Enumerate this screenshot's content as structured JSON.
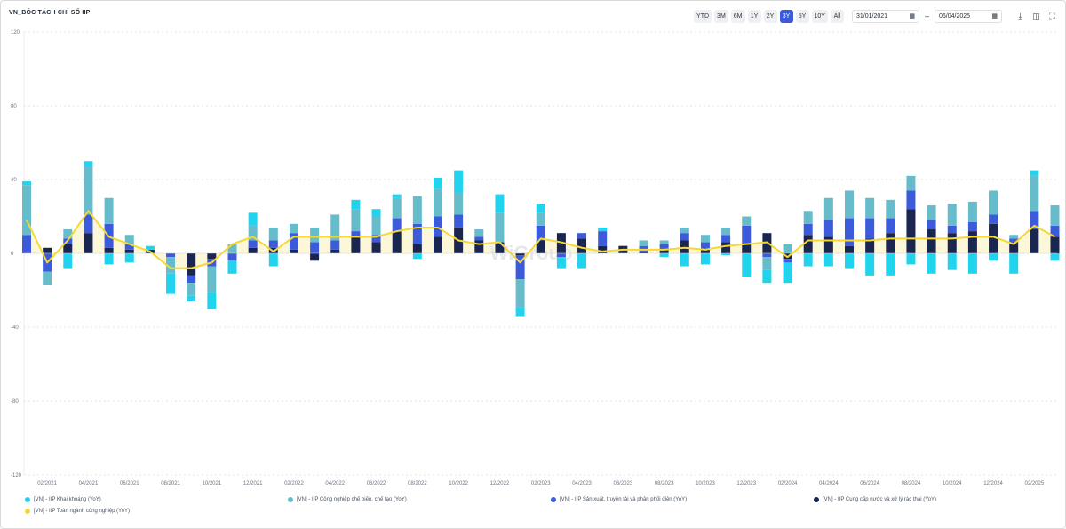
{
  "title": "VN_BÓC TÁCH CHỈ SỐ IIP",
  "toolbar": {
    "ranges": [
      "YTD",
      "3M",
      "6M",
      "1Y",
      "2Y",
      "3Y",
      "5Y",
      "10Y",
      "All"
    ],
    "active_range": "3Y",
    "date_from": "31/01/2021",
    "date_to": "06/04/2025",
    "separator": "–",
    "calendar_icon": "calendar-icon",
    "download_icon": "download-icon",
    "table_icon": "table-icon",
    "fullscreen_icon": "fullscreen-icon"
  },
  "watermark": "WiGroup",
  "colors": {
    "mining": "#22d3ee",
    "manufacturing": "#67bccc",
    "electricity": "#3b5bdb",
    "water": "#1a2550",
    "total": "#f5d833",
    "area": "#fdf6d3",
    "active": "#3b5bdb"
  },
  "chart_data": {
    "type": "bar",
    "stacked": true,
    "ylim": [
      -120,
      120
    ],
    "yticks": [
      -120,
      -80,
      -40,
      0,
      40,
      80,
      120
    ],
    "grid": true,
    "legend_position": "bottom",
    "xtick_labels": [
      "02/2021",
      "04/2021",
      "06/2021",
      "08/2021",
      "10/2021",
      "12/2021",
      "02/2022",
      "04/2022",
      "06/2022",
      "08/2022",
      "10/2022",
      "12/2022",
      "02/2023",
      "04/2023",
      "06/2023",
      "08/2023",
      "10/2023",
      "12/2023",
      "02/2024",
      "04/2024",
      "06/2024",
      "08/2024",
      "10/2024",
      "12/2024",
      "02/2025"
    ],
    "categories": [
      "01/2021",
      "02/2021",
      "03/2021",
      "04/2021",
      "05/2021",
      "06/2021",
      "07/2021",
      "08/2021",
      "09/2021",
      "10/2021",
      "11/2021",
      "12/2021",
      "01/2022",
      "02/2022",
      "03/2022",
      "04/2022",
      "05/2022",
      "06/2022",
      "07/2022",
      "08/2022",
      "09/2022",
      "10/2022",
      "11/2022",
      "12/2022",
      "01/2023",
      "02/2023",
      "03/2023",
      "04/2023",
      "05/2023",
      "06/2023",
      "07/2023",
      "08/2023",
      "09/2023",
      "10/2023",
      "11/2023",
      "12/2023",
      "01/2024",
      "02/2024",
      "03/2024",
      "04/2024",
      "05/2024",
      "06/2024",
      "07/2024",
      "08/2024",
      "09/2024",
      "10/2024",
      "11/2024",
      "12/2024",
      "01/2025",
      "02/2025",
      "03/2025"
    ],
    "series": [
      {
        "name": "[VN] - IIP Khai khoáng (YoY)",
        "color": "#22d3ee",
        "values": [
          2,
          0,
          -8,
          3,
          -6,
          -5,
          2,
          -11,
          -3,
          -9,
          -7,
          7,
          -7,
          0,
          0,
          0,
          5,
          4,
          2,
          -3,
          6,
          12,
          0,
          10,
          -5,
          5,
          -6,
          -8,
          2,
          0,
          0,
          -2,
          -7,
          -6,
          -1,
          -13,
          -7,
          -11,
          -7,
          -7,
          -8,
          -12,
          -12,
          -6,
          -11,
          -9,
          -11,
          -4,
          -11,
          3,
          -4
        ]
      },
      {
        "name": "[VN] - IIP Công nghiệp chế biến, chế tạo (YoY)",
        "color": "#67bccc",
        "values": [
          27,
          -7,
          5,
          26,
          14,
          5,
          0,
          -9,
          -7,
          -14,
          5,
          8,
          7,
          5,
          8,
          14,
          12,
          10,
          11,
          15,
          15,
          12,
          4,
          16,
          -15,
          7,
          0,
          0,
          0,
          0,
          3,
          2,
          3,
          4,
          4,
          5,
          -7,
          5,
          7,
          12,
          15,
          11,
          10,
          8,
          8,
          12,
          11,
          13,
          2,
          19,
          11
        ]
      },
      {
        "name": "[VN] - IIP Sản xuất, truyền tải và phân phối điện (YoY)",
        "color": "#3b5bdb",
        "values": [
          10,
          -10,
          3,
          10,
          13,
          3,
          0,
          -2,
          -4,
          -4,
          -4,
          4,
          4,
          9,
          6,
          5,
          3,
          4,
          7,
          11,
          11,
          7,
          2,
          0,
          -13,
          8,
          -2,
          3,
          8,
          0,
          3,
          3,
          4,
          4,
          4,
          10,
          -2,
          -2,
          6,
          9,
          15,
          11,
          8,
          10,
          5,
          4,
          5,
          5,
          2,
          10,
          6
        ]
      },
      {
        "name": "[VN] - IIP Cung cấp nước và xử lý rác thải (YoY)",
        "color": "#1a2550",
        "values": [
          0,
          3,
          5,
          11,
          3,
          2,
          2,
          0,
          -12,
          -3,
          0,
          3,
          3,
          2,
          -4,
          2,
          9,
          6,
          12,
          5,
          9,
          14,
          7,
          6,
          -1,
          7,
          11,
          8,
          4,
          4,
          1,
          2,
          7,
          2,
          6,
          5,
          11,
          -3,
          10,
          9,
          4,
          8,
          11,
          24,
          13,
          11,
          12,
          16,
          6,
          13,
          9
        ]
      },
      {
        "name": "[VN] - IIP Toàn ngành công nghiệp (YoY)",
        "color": "#f5d833",
        "type": "line",
        "values": [
          18,
          -5,
          7,
          23,
          9,
          5,
          1,
          -8,
          -8,
          -5,
          5,
          9,
          1,
          9,
          9,
          9,
          9,
          9,
          12,
          14,
          14,
          7,
          5,
          6,
          -5,
          8,
          6,
          3,
          1,
          2,
          2,
          2,
          3,
          2,
          4,
          5,
          6,
          -2,
          7,
          7,
          7,
          7,
          8,
          8,
          8,
          8,
          9,
          9,
          5,
          15,
          9
        ]
      }
    ]
  }
}
